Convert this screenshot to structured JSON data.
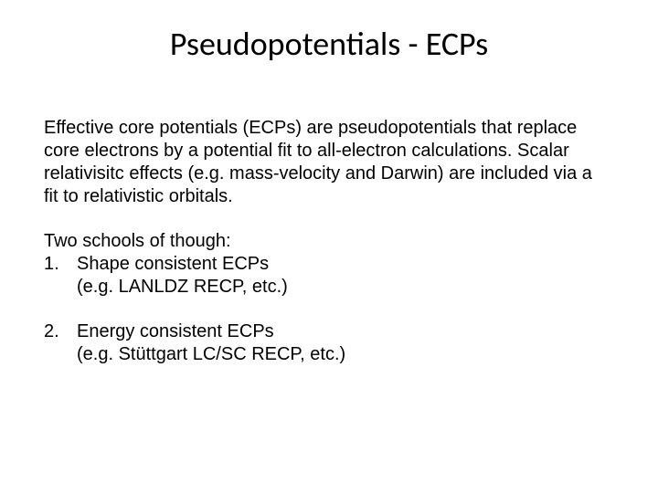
{
  "background_color": "#ffffff",
  "text_color": "#000000",
  "title": {
    "text": "Pseudopotentials - ECPs",
    "font_family": "Calibri",
    "font_size_pt": 36,
    "font_weight": "normal",
    "align": "center"
  },
  "body": {
    "font_family": "Arial",
    "font_size_pt": 20,
    "line_height": 1.25,
    "intro": "Effective core potentials (ECPs) are pseudopotentials that replace core electrons by a potential fit to all-electron calculations.  Scalar relativisitc effects (e.g. mass-velocity and Darwin) are included via a fit to relativistic orbitals.",
    "subheading": "Two schools of though:",
    "items": [
      {
        "number": "1.",
        "label": "Shape consistent ECPs",
        "example": "(e.g. LANLDZ RECP, etc.)"
      },
      {
        "number": "2.",
        "label": "Energy consistent ECPs",
        "example": "(e.g. Stüttgart LC/SC RECP, etc.)"
      }
    ]
  }
}
